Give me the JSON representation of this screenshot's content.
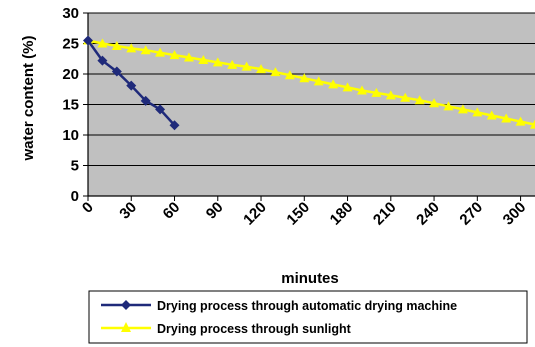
{
  "chart_data": {
    "type": "line",
    "xlabel": "minutes",
    "ylabel": "water content (%)",
    "xlim": [
      0,
      310
    ],
    "ylim": [
      0,
      30
    ],
    "x_ticks": [
      0,
      30,
      60,
      90,
      120,
      150,
      180,
      210,
      240,
      270,
      300
    ],
    "y_ticks": [
      0,
      5,
      10,
      15,
      20,
      25,
      30
    ],
    "grid": "horizontal",
    "plot_background": "#c0c0c0",
    "legend_position": "bottom",
    "series": [
      {
        "name": "Drying process through automatic drying machine",
        "color": "#1f2a7a",
        "marker": "diamond",
        "x": [
          0,
          10,
          20,
          30,
          40,
          50,
          60
        ],
        "y": [
          25.5,
          22.2,
          20.4,
          18.1,
          15.6,
          14.2,
          11.6
        ]
      },
      {
        "name": "Drying process through sunlight",
        "color": "#ffff00",
        "marker": "triangle",
        "x": [
          0,
          10,
          20,
          30,
          40,
          50,
          60,
          70,
          80,
          90,
          100,
          110,
          120,
          130,
          140,
          150,
          160,
          170,
          180,
          190,
          200,
          210,
          220,
          230,
          240,
          250,
          260,
          270,
          280,
          290,
          300,
          310
        ],
        "y": [
          25.5,
          25.0,
          24.6,
          24.2,
          23.9,
          23.5,
          23.1,
          22.7,
          22.3,
          21.9,
          21.5,
          21.2,
          20.8,
          20.3,
          19.8,
          19.3,
          18.8,
          18.3,
          17.8,
          17.3,
          16.9,
          16.5,
          16.1,
          15.7,
          15.2,
          14.7,
          14.2,
          13.7,
          13.2,
          12.7,
          12.2,
          11.7
        ]
      }
    ]
  }
}
